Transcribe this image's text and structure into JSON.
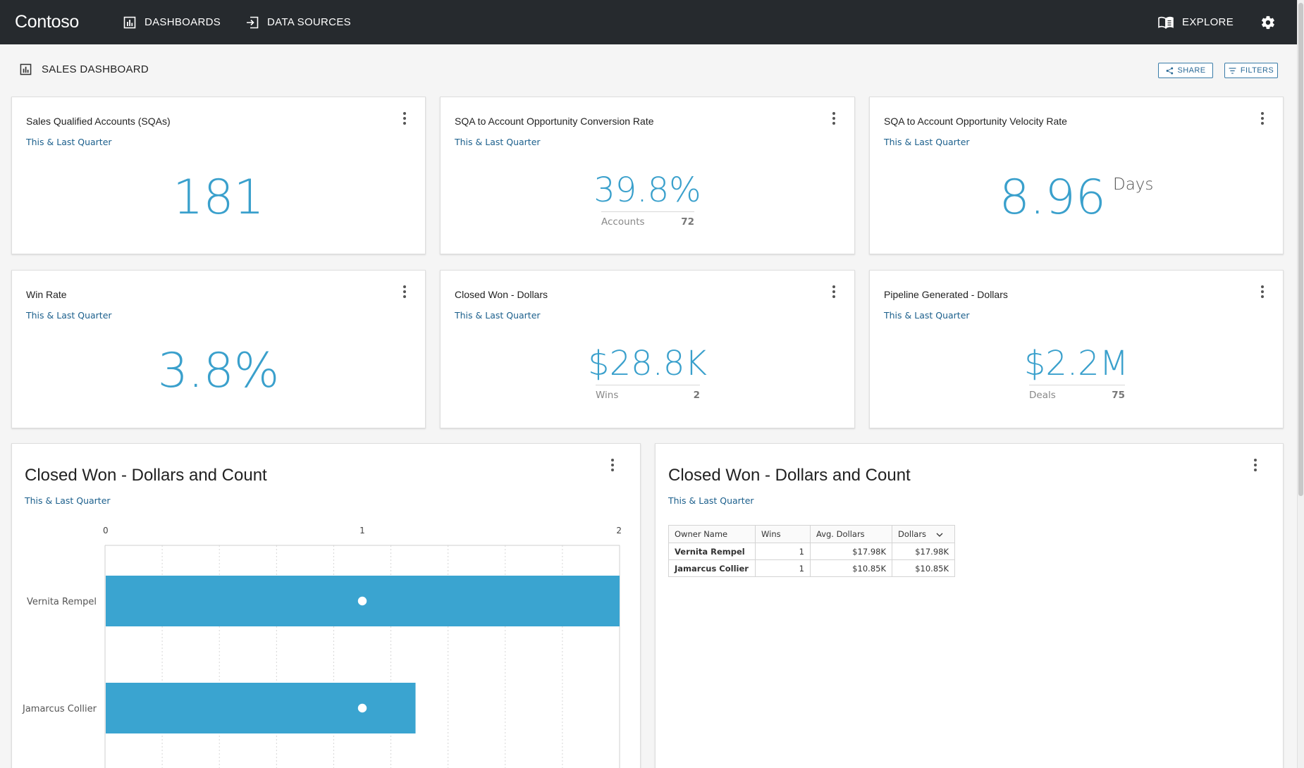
{
  "app": {
    "brand": "Contoso",
    "nav": [
      {
        "label": "DASHBOARDS",
        "icon": "bar-chart-icon"
      },
      {
        "label": "DATA SOURCES",
        "icon": "import-icon"
      }
    ],
    "explore_label": "EXPLORE"
  },
  "page": {
    "title": "SALES DASHBOARD",
    "share_label": "SHARE",
    "filters_label": "FILTERS"
  },
  "kpis": [
    {
      "title": "Sales Qualified Accounts (SQAs)",
      "subtitle": "This & Last Quarter",
      "value": "181",
      "unit": "",
      "secondary_label": "",
      "secondary_value": ""
    },
    {
      "title": "SQA to Account Opportunity Conversion Rate",
      "subtitle": "This & Last Quarter",
      "value": "39.8%",
      "unit": "",
      "secondary_label": "Accounts",
      "secondary_value": "72"
    },
    {
      "title": "SQA to Account Opportunity Velocity Rate",
      "subtitle": "This & Last Quarter",
      "value": "8.96",
      "unit": "Days",
      "secondary_label": "",
      "secondary_value": ""
    },
    {
      "title": "Win Rate",
      "subtitle": "This & Last Quarter",
      "value": "3.8%",
      "unit": "",
      "secondary_label": "",
      "secondary_value": ""
    },
    {
      "title": "Closed Won - Dollars",
      "subtitle": "This & Last Quarter",
      "value": "$28.8K",
      "unit": "",
      "secondary_label": "Wins",
      "secondary_value": "2"
    },
    {
      "title": "Pipeline Generated - Dollars",
      "subtitle": "This & Last Quarter",
      "value": "$2.2M",
      "unit": "",
      "secondary_label": "Deals",
      "secondary_value": "75"
    }
  ],
  "chart_panel": {
    "title": "Closed Won - Dollars and Count",
    "subtitle": "This & Last Quarter"
  },
  "chart_data": {
    "type": "bar",
    "orientation": "horizontal",
    "categories": [
      "Vernita Rempel",
      "Jamarcus Collier"
    ],
    "series": [
      {
        "values": [
          17.98,
          10.85
        ]
      },
      {
        "values": [
          1,
          1
        ]
      }
    ],
    "top_axis_ticks": [
      "0",
      "1",
      "2"
    ],
    "top_axis_range": [
      0,
      2
    ],
    "bar_axis_max": 17.98,
    "grid": true,
    "bar_color": "#3aa4d0"
  },
  "table_panel": {
    "title": "Closed Won - Dollars and Count",
    "subtitle": "This & Last Quarter",
    "columns": [
      "Owner Name",
      "Wins",
      "Avg. Dollars",
      "Dollars"
    ],
    "rows": [
      [
        "Vernita Rempel",
        "1",
        "$17.98K",
        "$17.98K"
      ],
      [
        "Jamarcus Collier",
        "1",
        "$10.85K",
        "$10.85K"
      ]
    ]
  }
}
